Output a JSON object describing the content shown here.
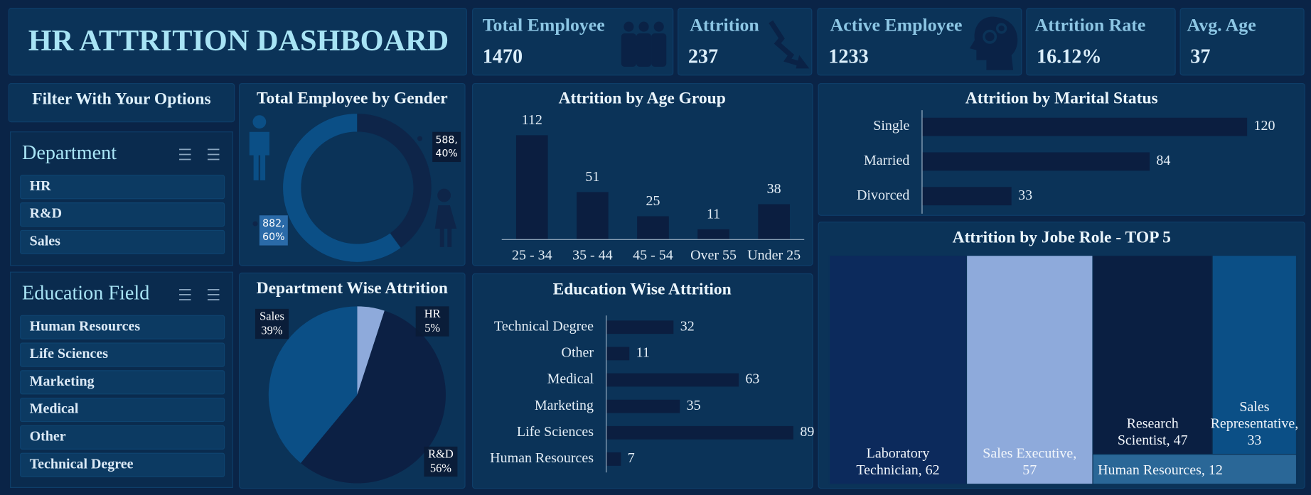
{
  "title": "HR ATTRITION DASHBOARD",
  "kpis": [
    {
      "label": "Total Employee",
      "value": 1470
    },
    {
      "label": "Attrition",
      "value": 237
    },
    {
      "label": "Active Employee",
      "value": 1233
    },
    {
      "label": "Attrition Rate",
      "value": "16.12%"
    },
    {
      "label": "Avg. Age",
      "value": 37
    }
  ],
  "filter_heading": "Filter With Your Options",
  "slicers": [
    {
      "title": "Department",
      "items": [
        "HR",
        "R&D",
        "Sales"
      ]
    },
    {
      "title": "Education Field",
      "items": [
        "Human Resources",
        "Life Sciences",
        "Marketing",
        "Medical",
        "Other",
        "Technical Degree"
      ]
    }
  ],
  "chart_data": [
    {
      "type": "donut",
      "title": "Total Employee by Gender",
      "values": [
        588,
        882
      ],
      "value_labels": [
        "588, 40%",
        "882, 60%"
      ],
      "colors": [
        "#0e2549",
        "#0b4f86"
      ]
    },
    {
      "type": "pie",
      "title": "Department Wise Attrition",
      "categories": [
        "HR",
        "R&D",
        "Sales"
      ],
      "values": [
        5,
        56,
        39
      ],
      "value_labels": [
        "5%",
        "56%",
        "39%"
      ],
      "colors": [
        "#8eaadb",
        "#0c2044",
        "#0b4f86"
      ]
    },
    {
      "type": "bar",
      "title": "Attrition by Age Group",
      "categories": [
        "25 - 34",
        "35 - 44",
        "45 - 54",
        "Over 55",
        "Under 25"
      ],
      "values": [
        112,
        51,
        25,
        11,
        38
      ],
      "color": "#0b1e40"
    },
    {
      "type": "hbar",
      "title": "Attrition by Marital Status",
      "categories": [
        "Single",
        "Married",
        "Divorced"
      ],
      "values": [
        120,
        84,
        33
      ],
      "color": "#0b1e40"
    },
    {
      "type": "hbar",
      "title": "Education Wise Attrition",
      "categories": [
        "Technical Degree",
        "Other",
        "Medical",
        "Marketing",
        "Life Sciences",
        "Human Resources"
      ],
      "values": [
        32,
        11,
        63,
        35,
        89,
        7
      ],
      "color": "#0b1e40"
    },
    {
      "type": "treemap",
      "title": "Attrition by Jobe Role - TOP 5",
      "values": [
        62,
        57,
        47,
        33,
        12
      ],
      "value_labels": [
        "Laboratory Technician, 62",
        "Sales Executive, 57",
        "Research Scientist, 47",
        "Sales Representative, 33",
        "Human Resources, 12"
      ],
      "colors": [
        "#0c2a5c",
        "#8eaadb",
        "#0a1f42",
        "#0b4f86",
        "#2a6797"
      ]
    }
  ]
}
